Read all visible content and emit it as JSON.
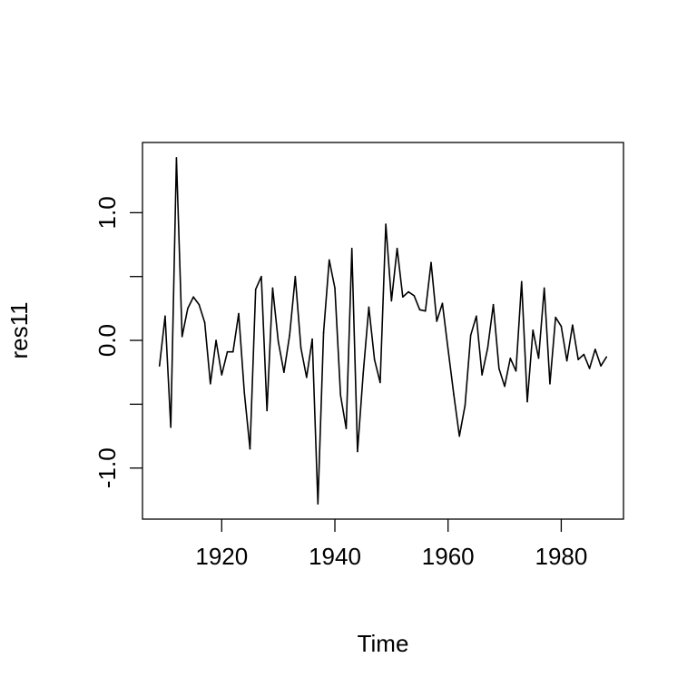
{
  "chart_data": {
    "type": "line",
    "title": "",
    "xlabel": "Time",
    "ylabel": "res11",
    "xlim": [
      1906,
      1991
    ],
    "ylim": [
      -1.4,
      1.55
    ],
    "x_ticks": [
      1920,
      1940,
      1960,
      1980
    ],
    "x_tick_labels": [
      "1920",
      "1940",
      "1960",
      "1980"
    ],
    "y_ticks": [
      -1.0,
      -0.5,
      0.0,
      0.5,
      1.0
    ],
    "y_tick_labels": [
      "-1.0",
      "",
      "0.0",
      "",
      "1.0"
    ],
    "grid": false,
    "series": [
      {
        "color": "#000000",
        "x": [
          1909,
          1910,
          1911,
          1912,
          1913,
          1914,
          1915,
          1916,
          1917,
          1918,
          1919,
          1920,
          1921,
          1922,
          1923,
          1924,
          1925,
          1926,
          1927,
          1928,
          1929,
          1930,
          1931,
          1932,
          1933,
          1934,
          1935,
          1936,
          1937,
          1938,
          1939,
          1940,
          1941,
          1942,
          1943,
          1944,
          1945,
          1946,
          1947,
          1948,
          1949,
          1950,
          1951,
          1952,
          1953,
          1954,
          1955,
          1956,
          1957,
          1958,
          1959,
          1960,
          1961,
          1962,
          1963,
          1964,
          1965,
          1966,
          1967,
          1968,
          1969,
          1970,
          1971,
          1972,
          1973,
          1974,
          1975,
          1976,
          1977,
          1978,
          1979,
          1980,
          1981,
          1982,
          1983,
          1984,
          1985,
          1986,
          1987,
          1988
        ],
        "values": [
          -0.2,
          0.19,
          -0.68,
          1.43,
          0.03,
          0.25,
          0.34,
          0.28,
          0.14,
          -0.34,
          0.0,
          -0.27,
          -0.09,
          -0.09,
          0.21,
          -0.41,
          -0.85,
          0.4,
          0.5,
          -0.55,
          0.41,
          -0.01,
          -0.25,
          0.04,
          0.5,
          -0.06,
          -0.29,
          0.01,
          -1.28,
          0.06,
          0.63,
          0.41,
          -0.43,
          -0.69,
          0.72,
          -0.87,
          -0.26,
          0.26,
          -0.15,
          -0.33,
          0.91,
          0.31,
          0.72,
          0.34,
          0.38,
          0.35,
          0.24,
          0.23,
          0.61,
          0.15,
          0.29,
          -0.07,
          -0.42,
          -0.75,
          -0.51,
          0.04,
          0.19,
          -0.27,
          -0.06,
          0.28,
          -0.22,
          -0.36,
          -0.14,
          -0.24,
          0.46,
          -0.48,
          0.08,
          -0.14,
          0.41,
          -0.34,
          0.18,
          0.11,
          -0.16,
          0.12,
          -0.15,
          -0.11,
          -0.22,
          -0.07,
          -0.2,
          -0.13
        ]
      }
    ]
  }
}
